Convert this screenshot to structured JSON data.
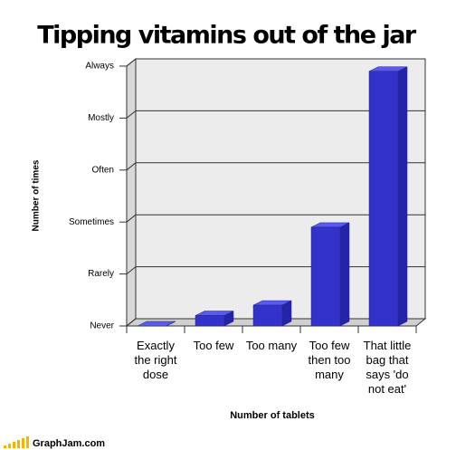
{
  "chart_data": {
    "type": "bar",
    "title": "Tipping vitamins out of the jar",
    "x_label": "Number of tablets",
    "y_label": "Number of times",
    "categories": [
      "Exactly the right dose",
      "Too few",
      "Too many",
      "Too few then too many",
      "That little bag that says 'do not eat'"
    ],
    "values": [
      0,
      0.2,
      0.4,
      1.9,
      4.9
    ],
    "color": "#3333cc",
    "ylim": [
      0,
      5
    ],
    "yticks": [
      {
        "value": 0,
        "label": "Never"
      },
      {
        "value": 1,
        "label": "Rarely"
      },
      {
        "value": 2,
        "label": "Sometimes"
      },
      {
        "value": 3,
        "label": "Often"
      },
      {
        "value": 4,
        "label": "Mostly"
      },
      {
        "value": 5,
        "label": "Always"
      }
    ],
    "grid": true,
    "source": "GraphJam.com"
  }
}
